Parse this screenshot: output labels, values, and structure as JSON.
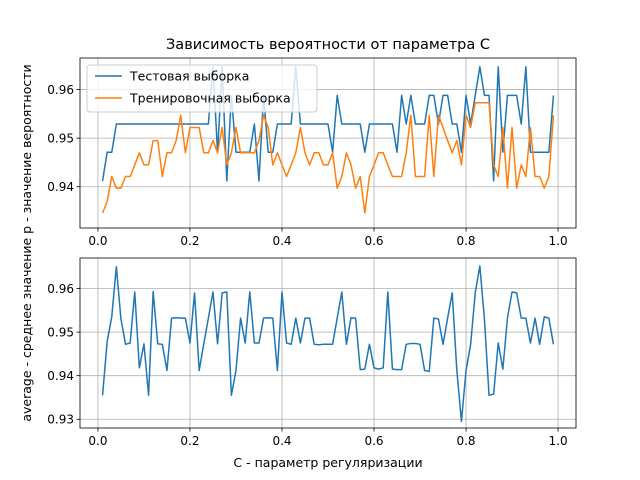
{
  "figure": {
    "ylabel": "average - среднее значение p - значение вероятности",
    "xlabel": "C - параметр регуляризации"
  },
  "chart_data": [
    {
      "type": "line",
      "title": "Зависимость вероятности от параметра C",
      "xlim": [
        -0.039,
        1.039
      ],
      "ylim": [
        0.9315,
        0.9665
      ],
      "xticks": [
        0.0,
        0.2,
        0.4,
        0.6,
        0.8,
        1.0
      ],
      "xtick_labels": [
        "0.0",
        "0.2",
        "0.4",
        "0.6",
        "0.8",
        "1.0"
      ],
      "yticks": [
        0.94,
        0.95,
        0.96
      ],
      "ytick_labels": [
        "0.94",
        "0.95",
        "0.96"
      ],
      "grid": true,
      "legend_position": "upper-left",
      "x": [
        0.01,
        0.02,
        0.03,
        0.04,
        0.05,
        0.06,
        0.07,
        0.08,
        0.09,
        0.1,
        0.11,
        0.12,
        0.13,
        0.14,
        0.15,
        0.16,
        0.17,
        0.18,
        0.19,
        0.2,
        0.21,
        0.22,
        0.23,
        0.24,
        0.25,
        0.26,
        0.27,
        0.28,
        0.29,
        0.3,
        0.31,
        0.32,
        0.33,
        0.34,
        0.35,
        0.36,
        0.37,
        0.38,
        0.39,
        0.4,
        0.41,
        0.42,
        0.43,
        0.44,
        0.45,
        0.46,
        0.47,
        0.48,
        0.49,
        0.5,
        0.51,
        0.52,
        0.53,
        0.54,
        0.55,
        0.56,
        0.57,
        0.58,
        0.59,
        0.6,
        0.61,
        0.62,
        0.63,
        0.64,
        0.65,
        0.66,
        0.67,
        0.68,
        0.69,
        0.7,
        0.71,
        0.72,
        0.73,
        0.74,
        0.75,
        0.76,
        0.77,
        0.78,
        0.79,
        0.8,
        0.81,
        0.82,
        0.83,
        0.84,
        0.85,
        0.86,
        0.87,
        0.88,
        0.89,
        0.9,
        0.91,
        0.92,
        0.93,
        0.94,
        0.95,
        0.96,
        0.97,
        0.98,
        0.99
      ],
      "series": [
        {
          "name": "Тестовая выборка",
          "color": "#1f77b4",
          "values": [
            0.9412,
            0.9471,
            0.9471,
            0.9529,
            0.9529,
            0.9529,
            0.9529,
            0.9529,
            0.9529,
            0.9529,
            0.9529,
            0.9529,
            0.9529,
            0.9529,
            0.9529,
            0.9529,
            0.9529,
            0.9529,
            0.9529,
            0.9529,
            0.9529,
            0.9529,
            0.9529,
            0.9529,
            0.9647,
            0.9471,
            0.9647,
            0.9412,
            0.9588,
            0.9471,
            0.9471,
            0.9471,
            0.9471,
            0.9529,
            0.9412,
            0.9588,
            0.9471,
            0.9471,
            0.9529,
            0.9529,
            0.9529,
            0.9529,
            0.9647,
            0.9529,
            0.9529,
            0.9529,
            0.9529,
            0.9529,
            0.9529,
            0.9529,
            0.9471,
            0.9588,
            0.9529,
            0.9529,
            0.9529,
            0.9529,
            0.9529,
            0.9471,
            0.9529,
            0.9529,
            0.9529,
            0.9529,
            0.9529,
            0.9529,
            0.9471,
            0.9588,
            0.9529,
            0.9588,
            0.9529,
            0.9529,
            0.9529,
            0.9588,
            0.9588,
            0.9529,
            0.9588,
            0.9588,
            0.9529,
            0.9529,
            0.9471,
            0.9588,
            0.9529,
            0.9588,
            0.9647,
            0.9588,
            0.9588,
            0.9412,
            0.9647,
            0.9471,
            0.9588,
            0.9588,
            0.9588,
            0.9529,
            0.9647,
            0.9471,
            0.9471,
            0.9471,
            0.9471,
            0.9471,
            0.9588
          ]
        },
        {
          "name": "Тренировочная выборка",
          "color": "#ff7f0e",
          "values": [
            0.9346,
            0.9369,
            0.9421,
            0.9397,
            0.9397,
            0.9421,
            0.9421,
            0.9445,
            0.947,
            0.9445,
            0.9445,
            0.9495,
            0.9495,
            0.9421,
            0.947,
            0.947,
            0.9495,
            0.9547,
            0.947,
            0.9522,
            0.9522,
            0.9522,
            0.947,
            0.947,
            0.9495,
            0.947,
            0.9522,
            0.9445,
            0.947,
            0.9522,
            0.947,
            0.947,
            0.947,
            0.947,
            0.9495,
            0.9547,
            0.9522,
            0.9445,
            0.947,
            0.9445,
            0.9421,
            0.9445,
            0.947,
            0.9522,
            0.947,
            0.9445,
            0.947,
            0.947,
            0.9445,
            0.9445,
            0.947,
            0.9397,
            0.9421,
            0.947,
            0.9445,
            0.9397,
            0.9421,
            0.9346,
            0.9421,
            0.9445,
            0.947,
            0.947,
            0.9445,
            0.9421,
            0.9421,
            0.9421,
            0.947,
            0.9547,
            0.9421,
            0.9421,
            0.9421,
            0.9547,
            0.9421,
            0.9547,
            0.9522,
            0.9495,
            0.947,
            0.9495,
            0.9445,
            0.9547,
            0.9522,
            0.9573,
            0.9573,
            0.9573,
            0.9573,
            0.9445,
            0.9421,
            0.9522,
            0.9397,
            0.9522,
            0.9397,
            0.9445,
            0.9421,
            0.9522,
            0.9421,
            0.9421,
            0.9397,
            0.9421,
            0.9547
          ]
        }
      ]
    },
    {
      "type": "line",
      "xlim": [
        -0.039,
        1.039
      ],
      "ylim": [
        0.928,
        0.967
      ],
      "xticks": [
        0.0,
        0.2,
        0.4,
        0.6,
        0.8,
        1.0
      ],
      "xtick_labels": [
        "0.0",
        "0.2",
        "0.4",
        "0.6",
        "0.8",
        "1.0"
      ],
      "yticks": [
        0.93,
        0.94,
        0.95,
        0.96
      ],
      "ytick_labels": [
        "0.93",
        "0.94",
        "0.95",
        "0.96"
      ],
      "grid": true,
      "x": [
        0.01,
        0.02,
        0.03,
        0.04,
        0.05,
        0.06,
        0.07,
        0.08,
        0.09,
        0.1,
        0.11,
        0.12,
        0.13,
        0.14,
        0.15,
        0.16,
        0.17,
        0.18,
        0.19,
        0.2,
        0.21,
        0.22,
        0.23,
        0.24,
        0.25,
        0.26,
        0.27,
        0.28,
        0.29,
        0.3,
        0.31,
        0.32,
        0.33,
        0.34,
        0.35,
        0.36,
        0.37,
        0.38,
        0.39,
        0.4,
        0.41,
        0.42,
        0.43,
        0.44,
        0.45,
        0.46,
        0.47,
        0.48,
        0.49,
        0.5,
        0.51,
        0.52,
        0.53,
        0.54,
        0.55,
        0.56,
        0.57,
        0.58,
        0.59,
        0.6,
        0.61,
        0.62,
        0.63,
        0.64,
        0.65,
        0.66,
        0.67,
        0.68,
        0.69,
        0.7,
        0.71,
        0.72,
        0.73,
        0.74,
        0.75,
        0.76,
        0.77,
        0.78,
        0.79,
        0.8,
        0.81,
        0.82,
        0.83,
        0.84,
        0.85,
        0.86,
        0.87,
        0.88,
        0.89,
        0.9,
        0.91,
        0.92,
        0.93,
        0.94,
        0.95,
        0.96,
        0.97,
        0.98,
        0.99
      ],
      "series": [
        {
          "color": "#1f77b4",
          "values": [
            0.9355,
            0.9478,
            0.9535,
            0.965,
            0.953,
            0.9472,
            0.9475,
            0.9592,
            0.9418,
            0.9473,
            0.9355,
            0.9593,
            0.9473,
            0.9472,
            0.9412,
            0.9532,
            0.9533,
            0.9532,
            0.9532,
            0.9475,
            0.959,
            0.9412,
            0.9473,
            0.9532,
            0.9592,
            0.9473,
            0.959,
            0.9592,
            0.9355,
            0.9412,
            0.9532,
            0.9475,
            0.9592,
            0.9475,
            0.9475,
            0.9532,
            0.9533,
            0.9532,
            0.9412,
            0.9592,
            0.9475,
            0.9472,
            0.9532,
            0.9475,
            0.9532,
            0.9532,
            0.9472,
            0.9471,
            0.9472,
            0.9472,
            0.9472,
            0.9532,
            0.9592,
            0.9472,
            0.9533,
            0.9532,
            0.9414,
            0.9415,
            0.9472,
            0.9418,
            0.9415,
            0.9418,
            0.9592,
            0.9415,
            0.9414,
            0.9414,
            0.9472,
            0.9474,
            0.9474,
            0.9472,
            0.9412,
            0.941,
            0.9532,
            0.953,
            0.9472,
            0.9532,
            0.959,
            0.9412,
            0.9295,
            0.9412,
            0.9472,
            0.959,
            0.9652,
            0.953,
            0.9355,
            0.9358,
            0.9475,
            0.9415,
            0.9532,
            0.9592,
            0.959,
            0.9532,
            0.9532,
            0.9475,
            0.9532,
            0.9472,
            0.9535,
            0.9532,
            0.9472
          ]
        }
      ]
    }
  ]
}
